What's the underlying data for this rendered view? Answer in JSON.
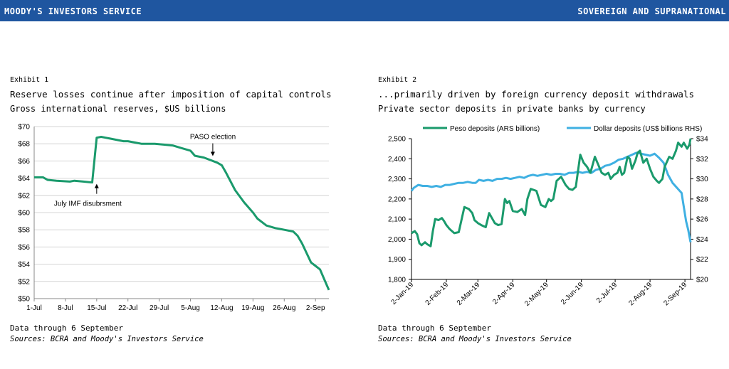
{
  "header": {
    "brand": "MOODY'S INVESTORS SERVICE",
    "section": "SOVEREIGN AND SUPRANATIONAL"
  },
  "exhibit1": {
    "label": "Exhibit 1",
    "title": "Reserve losses continue after imposition of capital controls",
    "subtitle": "Gross international reserves, $US billions",
    "note": "Data through 6 September",
    "source": "Sources: BCRA and Moody's Investors Service"
  },
  "exhibit2": {
    "label": "Exhibit 2",
    "title": "...primarily driven by foreign currency deposit withdrawals",
    "subtitle": "Private sector deposits in private banks by currency",
    "note": "Data through 6 September",
    "source": "Sources: BCRA and Moody's Investors Service"
  },
  "colors": {
    "green": "#1a9a6c",
    "blue": "#3fb0e2",
    "header": "#1f56a0"
  },
  "chart_data": [
    {
      "type": "line",
      "x_unit": "days since 1-Jul",
      "x_ticks": [
        "1-Jul",
        "8-Jul",
        "15-Jul",
        "22-Jul",
        "29-Jul",
        "5-Aug",
        "12-Aug",
        "19-Aug",
        "26-Aug",
        "2-Sep"
      ],
      "y_ticks": [
        "$50",
        "$52",
        "$54",
        "$56",
        "$58",
        "$60",
        "$62",
        "$64",
        "$66",
        "$68",
        "$70"
      ],
      "ylim": [
        50,
        70
      ],
      "series": [
        {
          "color": "#1a9a6c",
          "x": [
            0,
            2,
            3,
            5,
            8,
            9,
            11,
            13,
            14,
            15,
            16,
            17,
            18,
            19,
            20,
            21,
            23,
            24,
            25,
            27,
            29,
            31,
            33,
            35,
            36,
            38,
            39,
            41,
            42,
            43,
            45,
            47,
            49,
            50,
            51,
            52,
            54,
            55,
            56,
            58,
            59,
            60,
            62,
            63,
            64,
            65,
            66
          ],
          "y": [
            64.1,
            64.1,
            63.8,
            63.7,
            63.6,
            63.7,
            63.6,
            63.5,
            68.7,
            68.8,
            68.7,
            68.6,
            68.5,
            68.4,
            68.3,
            68.3,
            68.1,
            68.0,
            68.0,
            68.0,
            67.9,
            67.8,
            67.5,
            67.2,
            66.6,
            66.4,
            66.2,
            65.8,
            65.5,
            64.6,
            62.6,
            61.2,
            60.0,
            59.3,
            58.9,
            58.5,
            58.2,
            58.1,
            58.0,
            57.8,
            57.3,
            56.4,
            54.2,
            53.8,
            53.4,
            52.2,
            51.0
          ]
        }
      ],
      "annotations": [
        {
          "text": "July IMF disubrsment",
          "x": 14,
          "y": 63.5
        },
        {
          "text": "PASO election",
          "x": 40,
          "y": 66.4
        }
      ]
    },
    {
      "type": "line",
      "x_ticks": [
        "2-Jan-19",
        "2-Feb-19",
        "2-Mar-19",
        "2-Apr-19",
        "2-May-19",
        "2-Jun-19",
        "2-Jul-19",
        "2-Aug-19",
        "2-Sep-19"
      ],
      "left_axis": {
        "ticks": [
          "1,800",
          "1,900",
          "2,000",
          "2,100",
          "2,200",
          "2,300",
          "2,400",
          "2,500"
        ],
        "ylim": [
          1800,
          2500
        ]
      },
      "right_axis": {
        "ticks": [
          "$20",
          "$22",
          "$24",
          "$26",
          "$28",
          "$30",
          "$32",
          "$34"
        ],
        "ylim": [
          20,
          34
        ]
      },
      "legend_position": "top",
      "series": [
        {
          "name": "Peso deposits (ARS billions)",
          "color": "#1a9a6c",
          "axis": "left",
          "x": [
            0,
            3,
            5,
            7,
            9,
            12,
            14,
            17,
            19,
            21,
            24,
            27,
            29,
            31,
            34,
            38,
            42,
            47,
            51,
            54,
            56,
            59,
            62,
            66,
            69,
            71,
            74,
            77,
            80,
            83,
            85,
            87,
            90,
            94,
            98,
            101,
            103,
            106,
            111,
            115,
            119,
            122,
            124,
            126,
            129,
            133,
            137,
            140,
            143,
            146,
            150,
            153,
            156,
            159,
            163,
            166,
            169,
            172,
            175,
            177,
            180,
            183,
            185,
            187,
            189,
            192,
            194,
            196,
            199,
            201,
            203,
            206,
            209,
            212,
            215,
            218,
            220,
            223,
            225,
            229,
            232,
            235,
            237,
            240,
            242,
            245,
            247,
            248
          ],
          "y": [
            2030,
            2040,
            2025,
            1980,
            1970,
            1985,
            1975,
            1965,
            2040,
            2100,
            2095,
            2105,
            2090,
            2070,
            2050,
            2030,
            2035,
            2160,
            2150,
            2130,
            2095,
            2080,
            2070,
            2060,
            2130,
            2110,
            2080,
            2070,
            2075,
            2200,
            2180,
            2190,
            2140,
            2135,
            2150,
            2120,
            2200,
            2250,
            2240,
            2170,
            2160,
            2200,
            2190,
            2200,
            2290,
            2310,
            2270,
            2250,
            2245,
            2260,
            2420,
            2380,
            2360,
            2330,
            2410,
            2370,
            2330,
            2320,
            2330,
            2300,
            2320,
            2330,
            2360,
            2320,
            2330,
            2410,
            2400,
            2350,
            2390,
            2430,
            2440,
            2380,
            2400,
            2350,
            2310,
            2290,
            2280,
            2300,
            2360,
            2410,
            2400,
            2440,
            2480,
            2460,
            2480,
            2450,
            2470,
            2500
          ]
        },
        {
          "name": "Dollar deposits (US$ billions RHS)",
          "color": "#3fb0e2",
          "axis": "right",
          "x": [
            0,
            2,
            6,
            10,
            14,
            18,
            22,
            26,
            30,
            34,
            38,
            42,
            46,
            50,
            54,
            57,
            60,
            64,
            68,
            72,
            76,
            80,
            84,
            88,
            92,
            96,
            100,
            104,
            108,
            112,
            116,
            120,
            124,
            128,
            132,
            136,
            140,
            144,
            148,
            152,
            156,
            160,
            164,
            168,
            172,
            176,
            180,
            184,
            188,
            192,
            196,
            200,
            204,
            208,
            212,
            216,
            220,
            224,
            228,
            232,
            236,
            240,
            244,
            246,
            248
          ],
          "y": [
            28.8,
            29.1,
            29.4,
            29.3,
            29.3,
            29.2,
            29.3,
            29.2,
            29.4,
            29.4,
            29.5,
            29.6,
            29.6,
            29.7,
            29.6,
            29.6,
            29.9,
            29.8,
            29.9,
            29.8,
            30.0,
            30.0,
            30.1,
            30.0,
            30.1,
            30.2,
            30.1,
            30.3,
            30.4,
            30.3,
            30.4,
            30.5,
            30.4,
            30.5,
            30.5,
            30.4,
            30.6,
            30.6,
            30.7,
            30.6,
            30.7,
            30.6,
            30.9,
            31.0,
            31.3,
            31.4,
            31.6,
            31.9,
            32.0,
            32.2,
            32.4,
            32.6,
            32.5,
            32.4,
            32.3,
            32.5,
            32.1,
            31.6,
            30.4,
            29.6,
            29.1,
            28.6,
            25.8,
            24.9,
            23.7
          ]
        }
      ]
    }
  ]
}
